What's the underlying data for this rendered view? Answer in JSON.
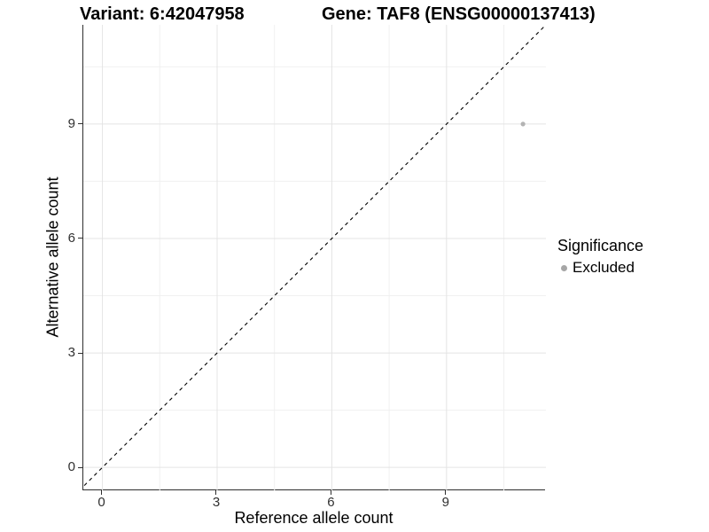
{
  "chart_data": {
    "type": "scatter",
    "titles": {
      "variant": "Variant: 6:42047958",
      "gene": "Gene: TAF8 (ENSG00000137413)"
    },
    "xlabel": "Reference allele count",
    "ylabel": "Alternative allele count",
    "xlim": [
      -0.5,
      11.6
    ],
    "ylim": [
      -0.6,
      11.6
    ],
    "x_ticks": [
      0,
      3,
      6,
      9
    ],
    "y_ticks": [
      0,
      3,
      6,
      9
    ],
    "x_minor_ticks": [
      1.5,
      4.5,
      7.5,
      10.5
    ],
    "y_minor_ticks": [
      1.5,
      4.5,
      7.5,
      10.5
    ],
    "grid": "major+minor",
    "series": [
      {
        "name": "Excluded",
        "color": "#b3b3b3",
        "points": [
          {
            "x": 11,
            "y": 9
          }
        ]
      }
    ],
    "reference_line": {
      "equation": "y = x",
      "style": "dashed",
      "color": "#000000"
    },
    "legend": {
      "title": "Significance",
      "position": "right",
      "items": [
        {
          "label": "Excluded",
          "color": "#a6a6a6"
        }
      ]
    },
    "colors": {
      "background": "#ffffff",
      "grid_major": "#e4e4e4",
      "grid_minor": "#f0f0f0",
      "axis_line": "#2e2e2e",
      "tick_label": "#303030",
      "title_text": "#000000"
    }
  }
}
